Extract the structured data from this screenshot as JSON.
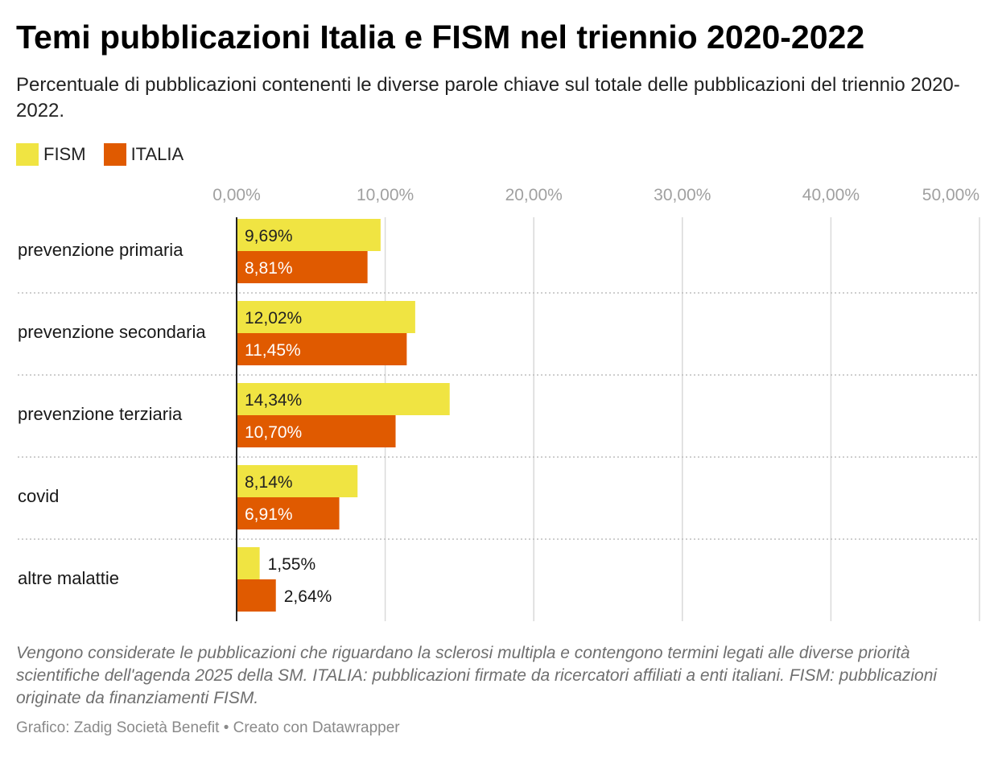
{
  "header": {
    "title": "Temi pubblicazioni Italia e FISM nel triennio 2020-2022",
    "subtitle": "Percentuale di pubblicazioni contenenti le diverse parole chiave sul totale delle pubblicazioni del triennio 2020-2022."
  },
  "legend": [
    {
      "name": "FISM",
      "color": "#f0e442"
    },
    {
      "name": "ITALIA",
      "color": "#e05a00"
    }
  ],
  "footer": {
    "note": "Vengono considerate le pubblicazioni che riguardano la sclerosi multipla e contengono termini legati alle diverse priorità scientifiche dell'agenda 2025 della SM. ITALIA: pubblicazioni firmate da ricercatori affiliati a enti italiani. FISM: pubblicazioni originate da finanziamenti FISM.",
    "credit": "Grafico: Zadig Società Benefit • Creato con Datawrapper"
  },
  "chart_data": {
    "type": "bar",
    "orientation": "horizontal",
    "categories": [
      "prevenzione primaria",
      "prevenzione secondaria",
      "prevenzione terziaria",
      "covid",
      "altre malattie"
    ],
    "series": [
      {
        "name": "FISM",
        "color": "#f0e442",
        "values": [
          9.69,
          12.02,
          14.34,
          8.14,
          1.55
        ],
        "labels": [
          "9,69%",
          "12,02%",
          "14,34%",
          "8,14%",
          "1,55%"
        ]
      },
      {
        "name": "ITALIA",
        "color": "#e05a00",
        "values": [
          8.81,
          11.45,
          10.7,
          6.91,
          2.64
        ],
        "labels": [
          "8,81%",
          "11,45%",
          "10,70%",
          "6,91%",
          "2,64%"
        ]
      }
    ],
    "xlim": [
      0,
      50
    ],
    "ticks": [
      0,
      10,
      20,
      30,
      40,
      50
    ],
    "tick_labels": [
      "0,00%",
      "10,00%",
      "20,00%",
      "30,00%",
      "40,00%",
      "50,00%"
    ],
    "grid": true,
    "legend_position": "top-left"
  }
}
